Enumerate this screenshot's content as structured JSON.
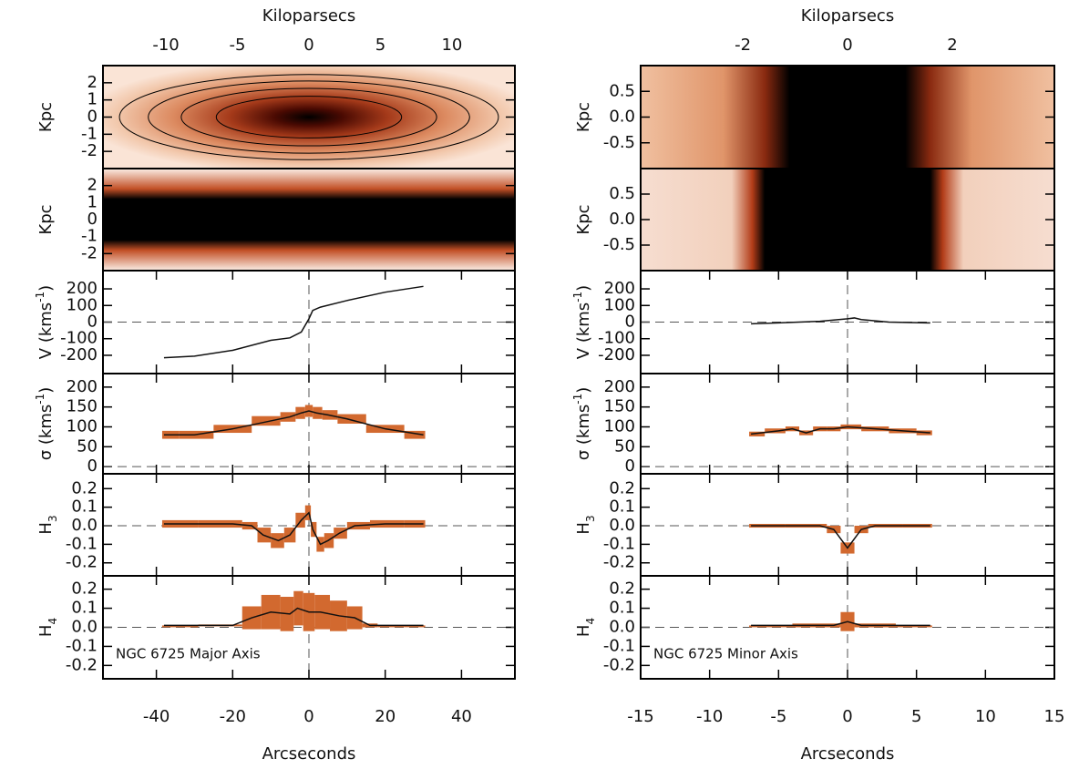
{
  "chart_data": [
    {
      "type": "kinematic-profile",
      "x2label": "Kiloparsecs",
      "x2lim": [
        -14.4,
        14.4
      ],
      "x2ticks": [
        -10,
        -5,
        0,
        5,
        10
      ],
      "xlabel": "Arcseconds",
      "xlim": [
        -54,
        54
      ],
      "xticks": [
        -40,
        -20,
        0,
        20,
        40
      ],
      "annotation": "NGC 6725 Major Axis",
      "color": "#d2692f",
      "images": [
        {
          "ylabel": [
            {
              "t": "Kpc"
            }
          ],
          "ylim": [
            -3,
            3
          ],
          "yticks": [
            -2,
            -1,
            0,
            1,
            2
          ]
        },
        {
          "ylabel": [
            {
              "t": "Kpc"
            }
          ],
          "ylim": [
            -3,
            3
          ],
          "yticks": [
            -2,
            -1,
            0,
            1,
            2
          ]
        }
      ],
      "panels": [
        {
          "ylabel": [
            {
              "t": "V  (kms"
            },
            {
              "t": "-1",
              "sup": true
            },
            {
              "t": ")"
            }
          ],
          "ylim": [
            -310,
            310
          ],
          "yticks": [
            -200,
            -100,
            0,
            100,
            200
          ],
          "x": [
            -38,
            -30,
            -20,
            -10,
            -5,
            -2,
            0,
            1,
            3,
            10,
            20,
            30
          ],
          "values": [
            -215,
            -205,
            -170,
            -110,
            -95,
            -60,
            20,
            70,
            90,
            130,
            180,
            215
          ]
        },
        {
          "ylabel": [
            {
              "t": "σ  (kms"
            },
            {
              "t": "-1",
              "sup": true
            },
            {
              "t": ")"
            }
          ],
          "ylim": [
            -18,
            234
          ],
          "yticks": [
            0,
            50,
            100,
            150,
            200
          ],
          "x": [
            -38,
            -30,
            -20,
            -10,
            -5,
            -2,
            0,
            2,
            5,
            10,
            20,
            30
          ],
          "values": [
            80,
            80,
            95,
            115,
            125,
            135,
            140,
            135,
            130,
            120,
            95,
            80
          ],
          "errors": [
            10,
            10,
            10,
            12,
            12,
            15,
            15,
            15,
            12,
            12,
            10,
            10
          ]
        },
        {
          "ylabel": [
            {
              "t": "H"
            },
            {
              "t": "3",
              "sub": true
            }
          ],
          "ylim": [
            -0.27,
            0.28
          ],
          "yticks": [
            -0.2,
            -0.1,
            {
              "value": 0,
              "label": "0.0"
            },
            0.1,
            0.2
          ],
          "x": [
            -38,
            -20,
            -15,
            -12,
            -8,
            -5,
            -2,
            0,
            1,
            3,
            5,
            8,
            12,
            20,
            30
          ],
          "values": [
            0.01,
            0.01,
            0,
            -0.05,
            -0.08,
            -0.05,
            0.03,
            0.07,
            -0.02,
            -0.1,
            -0.08,
            -0.04,
            0,
            0.01,
            0.01
          ],
          "errors": [
            0.02,
            0.02,
            0.02,
            0.04,
            0.04,
            0.04,
            0.04,
            0.04,
            0.04,
            0.04,
            0.04,
            0.03,
            0.02,
            0.02,
            0.02
          ]
        },
        {
          "ylabel": [
            {
              "t": "H"
            },
            {
              "t": "4",
              "sub": true
            }
          ],
          "ylim": [
            -0.27,
            0.27
          ],
          "yticks": [
            -0.2,
            -0.1,
            {
              "value": 0,
              "label": "0.0"
            },
            0.1,
            0.2
          ],
          "x": [
            -38,
            -20,
            -15,
            -10,
            -5,
            -3,
            0,
            3,
            8,
            12,
            16,
            20,
            30
          ],
          "values": [
            0.01,
            0.01,
            0.05,
            0.08,
            0.07,
            0.1,
            0.08,
            0.08,
            0.06,
            0.05,
            0.01,
            0.01,
            0.01
          ],
          "errors": [
            0,
            0.005,
            0.06,
            0.09,
            0.09,
            0.09,
            0.1,
            0.09,
            0.08,
            0.06,
            0.01,
            0,
            0
          ]
        }
      ]
    },
    {
      "type": "kinematic-profile",
      "x2label": "Kiloparsecs",
      "x2lim": [
        -3.95,
        3.95
      ],
      "x2ticks": [
        -2,
        0,
        2
      ],
      "xlabel": "Arcseconds",
      "xlim": [
        -15,
        15
      ],
      "xticks": [
        -15,
        -10,
        -5,
        0,
        5,
        10,
        15
      ],
      "annotation": "NGC 6725 Minor Axis",
      "color": "#d2692f",
      "images": [
        {
          "ylabel": [
            {
              "t": "Kpc"
            }
          ],
          "ylim": [
            -1,
            1
          ],
          "yticks": [
            -0.5,
            {
              "value": 0,
              "label": "0.0"
            },
            0.5
          ]
        },
        {
          "ylabel": [
            {
              "t": "Kpc"
            }
          ],
          "ylim": [
            -1,
            1
          ],
          "yticks": [
            -0.5,
            {
              "value": 0,
              "label": "0.0"
            },
            0.5
          ]
        }
      ],
      "panels": [
        {
          "ylabel": [
            {
              "t": "V  (kms"
            },
            {
              "t": "-1",
              "sup": true
            },
            {
              "t": ")"
            }
          ],
          "ylim": [
            -310,
            310
          ],
          "yticks": [
            -200,
            -100,
            0,
            100,
            200
          ],
          "x": [
            -7,
            -5,
            -2,
            0,
            0.5,
            1,
            3,
            6
          ],
          "values": [
            -10,
            -5,
            5,
            20,
            25,
            15,
            0,
            -5
          ]
        },
        {
          "ylabel": [
            {
              "t": "σ  (kms"
            },
            {
              "t": "-1",
              "sup": true
            },
            {
              "t": ")"
            }
          ],
          "ylim": [
            -18,
            234
          ],
          "yticks": [
            0,
            50,
            100,
            150,
            200
          ],
          "x": [
            -7,
            -5,
            -4,
            -3,
            -2,
            -1,
            0,
            2,
            4,
            6
          ],
          "values": [
            82,
            90,
            95,
            85,
            95,
            95,
            100,
            95,
            90,
            85
          ],
          "errors": [
            6,
            6,
            6,
            6,
            6,
            6,
            6,
            6,
            6,
            6
          ]
        },
        {
          "ylabel": [
            {
              "t": "H"
            },
            {
              "t": "3",
              "sub": true
            }
          ],
          "ylim": [
            -0.27,
            0.28
          ],
          "yticks": [
            -0.2,
            -0.1,
            {
              "value": 0,
              "label": "0.0"
            },
            0.1,
            0.2
          ],
          "x": [
            -7,
            -2,
            -1,
            0,
            1,
            2,
            6
          ],
          "values": [
            0,
            0,
            -0.02,
            -0.12,
            -0.02,
            0,
            0
          ],
          "errors": [
            0.01,
            0.01,
            0.02,
            0.03,
            0.02,
            0.01,
            0.01
          ]
        },
        {
          "ylabel": [
            {
              "t": "H"
            },
            {
              "t": "4",
              "sub": true
            }
          ],
          "ylim": [
            -0.27,
            0.27
          ],
          "yticks": [
            -0.2,
            -0.1,
            {
              "value": 0,
              "label": "0.0"
            },
            0.1,
            0.2
          ],
          "x": [
            -7,
            -1,
            0,
            1,
            6
          ],
          "values": [
            0.01,
            0.01,
            0.03,
            0.01,
            0.01
          ],
          "errors": [
            0,
            0.01,
            0.05,
            0.01,
            0
          ]
        }
      ]
    }
  ]
}
